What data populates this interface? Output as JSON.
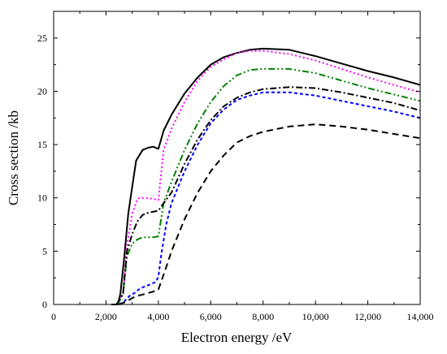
{
  "chart_data": {
    "type": "line",
    "title": "",
    "xlabel": "Electron energy /eV",
    "ylabel": "Cross section /kb",
    "xlim": [
      0,
      14000
    ],
    "ylim": [
      0,
      27.5
    ],
    "grid": false,
    "x_ticks": [
      0,
      2000,
      4000,
      6000,
      8000,
      10000,
      12000,
      14000
    ],
    "x_tick_labels": [
      "0",
      "2,000",
      "4,000",
      "6,000",
      "8,000",
      "10,000",
      "12,000",
      "14,000"
    ],
    "y_ticks": [
      0,
      5,
      10,
      15,
      20,
      25
    ],
    "y_tick_labels": [
      "0",
      "5",
      "10",
      "15",
      "20",
      "25"
    ],
    "series": [
      {
        "color": "#000000",
        "dash": "solid",
        "x": [
          2200,
          2450,
          2550,
          2700,
          2850,
          3000,
          3150,
          3400,
          3600,
          3800,
          4000,
          4200,
          4500,
          5000,
          5500,
          6000,
          6500,
          7000,
          7500,
          8000,
          9000,
          10000,
          11000,
          12000,
          13000,
          14000
        ],
        "y": [
          0,
          0,
          1,
          4.5,
          8.5,
          11,
          13.5,
          14.5,
          14.7,
          14.8,
          14.6,
          16.3,
          17.8,
          19.8,
          21.3,
          22.5,
          23.2,
          23.6,
          23.9,
          24.0,
          23.9,
          23.3,
          22.6,
          21.9,
          21.3,
          20.6
        ]
      },
      {
        "color": "#ff00ff",
        "dash": "dot",
        "x": [
          2400,
          2650,
          2800,
          3000,
          3200,
          3300,
          3500,
          3800,
          4000,
          4200,
          4500,
          5000,
          5500,
          6000,
          6500,
          7000,
          7500,
          8000,
          9000,
          10000,
          11000,
          12000,
          13000,
          14000
        ],
        "y": [
          0,
          1,
          5.5,
          8.5,
          9.9,
          10.0,
          10.0,
          9.9,
          9.8,
          14.5,
          16.5,
          19.0,
          21.0,
          22.3,
          23.0,
          23.6,
          23.8,
          23.8,
          23.5,
          22.9,
          22.1,
          21.3,
          20.6,
          19.9
        ]
      },
      {
        "color": "#008000",
        "dash": "dashdotdot",
        "x": [
          2450,
          2650,
          2800,
          3000,
          3200,
          3400,
          3600,
          3800,
          4000,
          4200,
          4500,
          5000,
          5500,
          6000,
          6500,
          7000,
          7500,
          8000,
          9000,
          10000,
          11000,
          12000,
          13000,
          14000
        ],
        "y": [
          0,
          1,
          4.5,
          5.7,
          6.1,
          6.3,
          6.3,
          6.3,
          6.4,
          9.5,
          11.5,
          14.5,
          17.0,
          19.0,
          20.5,
          21.5,
          22.0,
          22.1,
          22.1,
          21.7,
          21.0,
          20.3,
          19.7,
          19.1
        ]
      },
      {
        "color": "#000000",
        "dash": "dashdot",
        "x": [
          2400,
          2650,
          2800,
          3000,
          3200,
          3400,
          3600,
          3800,
          4000,
          4200,
          4500,
          5000,
          5500,
          6000,
          6500,
          7000,
          7500,
          8000,
          9000,
          10000,
          11000,
          12000,
          13000,
          14000
        ],
        "y": [
          0,
          1,
          5.0,
          6.6,
          7.8,
          8.4,
          8.6,
          8.7,
          8.8,
          9.5,
          10.5,
          13.2,
          15.5,
          17.3,
          18.6,
          19.4,
          19.9,
          20.2,
          20.4,
          20.3,
          19.9,
          19.4,
          18.9,
          18.2
        ]
      },
      {
        "color": "#0000ff",
        "dash": "dash-short",
        "x": [
          2500,
          2700,
          2900,
          3100,
          3300,
          3600,
          3900,
          4000,
          4100,
          4300,
          4500,
          5000,
          5500,
          6000,
          6500,
          7000,
          7500,
          8000,
          9000,
          10000,
          11000,
          12000,
          13000,
          14000
        ],
        "y": [
          0,
          0.3,
          0.8,
          1.1,
          1.5,
          1.8,
          2.1,
          2.6,
          4.5,
          7.5,
          9.5,
          12.5,
          15.0,
          17.0,
          18.3,
          19.2,
          19.6,
          19.9,
          19.9,
          19.6,
          19.1,
          18.6,
          18.1,
          17.5
        ]
      },
      {
        "color": "#000000",
        "dash": "dash-long",
        "x": [
          2500,
          2800,
          3000,
          3200,
          3500,
          3800,
          4000,
          4300,
          4500,
          5000,
          5500,
          6000,
          6500,
          7000,
          7500,
          8000,
          9000,
          10000,
          11000,
          12000,
          13000,
          14000
        ],
        "y": [
          0,
          0.3,
          0.6,
          0.8,
          1.0,
          1.2,
          1.4,
          3.5,
          5.0,
          8.0,
          10.5,
          12.5,
          14.0,
          15.2,
          15.8,
          16.2,
          16.7,
          16.9,
          16.7,
          16.4,
          16.0,
          15.6
        ]
      }
    ]
  }
}
